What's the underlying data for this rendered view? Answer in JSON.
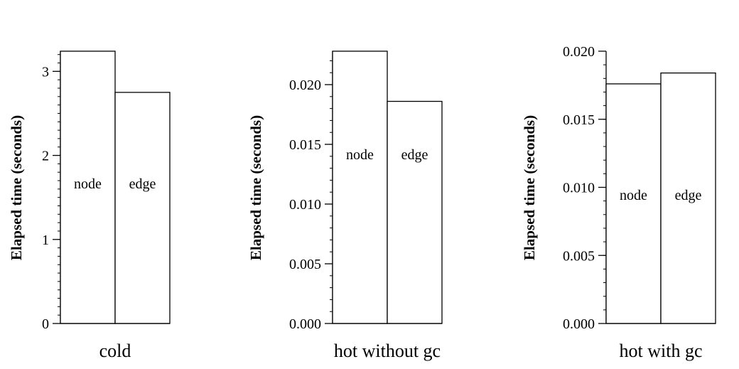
{
  "chart_data": [
    {
      "type": "bar",
      "xlabel": "cold",
      "ylabel": "Elapsed time (seconds)",
      "categories": [
        "node",
        "edge"
      ],
      "values": [
        3.24,
        2.75
      ],
      "ylim": [
        0,
        3.24
      ],
      "yticks": [
        0,
        1,
        2,
        3
      ],
      "ytick_labels": [
        "0",
        "1",
        "2",
        "3"
      ],
      "minor_tick_step": 0.1,
      "grid": false,
      "legend": "none"
    },
    {
      "type": "bar",
      "xlabel": "hot without gc",
      "ylabel": "Elapsed time (seconds)",
      "categories": [
        "node",
        "edge"
      ],
      "values": [
        0.0228,
        0.0186
      ],
      "ylim": [
        0,
        0.0228
      ],
      "yticks": [
        0,
        0.005,
        0.01,
        0.015,
        0.02
      ],
      "ytick_labels": [
        "0.000",
        "0.005",
        "0.010",
        "0.015",
        "0.020"
      ],
      "minor_tick_step": 0.001,
      "grid": false,
      "legend": "none"
    },
    {
      "type": "bar",
      "xlabel": "hot with gc",
      "ylabel": "Elapsed time (seconds)",
      "categories": [
        "node",
        "edge"
      ],
      "values": [
        0.0176,
        0.0184
      ],
      "ylim": [
        0,
        0.02
      ],
      "yticks": [
        0,
        0.005,
        0.01,
        0.015,
        0.02
      ],
      "ytick_labels": [
        "0.000",
        "0.005",
        "0.010",
        "0.015",
        "0.020"
      ],
      "minor_tick_step": 0.001,
      "grid": false,
      "legend": "none"
    }
  ]
}
